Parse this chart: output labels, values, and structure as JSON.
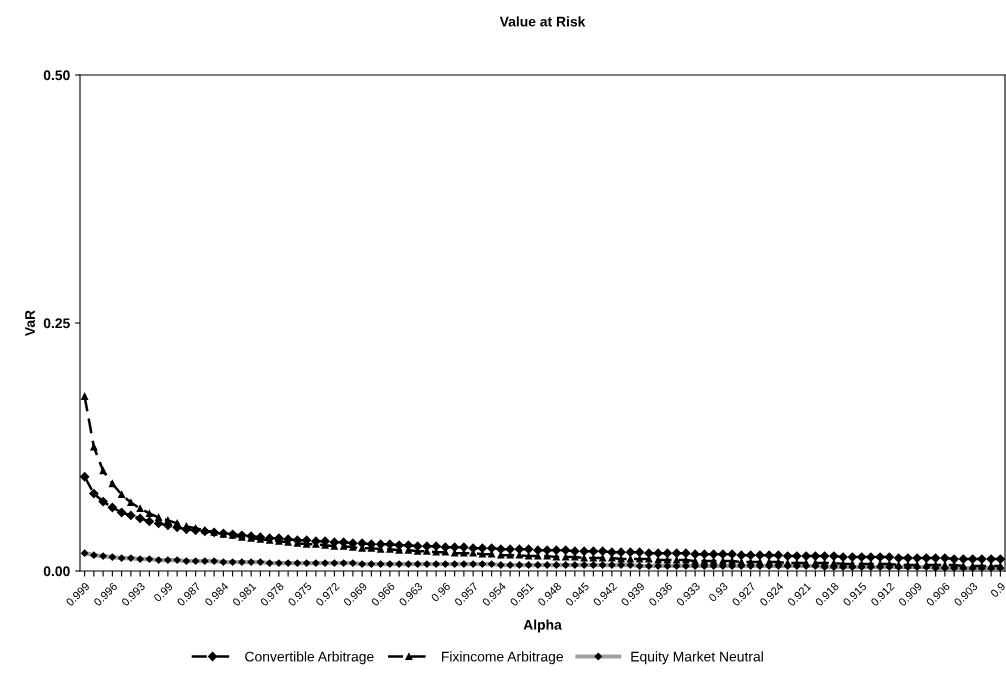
{
  "chart_data": {
    "type": "line",
    "title": "Value at Risk",
    "xlabel": "Alpha",
    "ylabel": "VaR",
    "categories": [
      "0.999",
      null,
      null,
      "0.996",
      null,
      null,
      "0.993",
      null,
      null,
      "0.99",
      null,
      null,
      "0.987",
      null,
      null,
      "0.984",
      null,
      null,
      "0.981",
      null,
      null,
      "0.978",
      null,
      null,
      "0.975",
      null,
      null,
      "0.972",
      null,
      null,
      "0.969",
      null,
      null,
      "0.966",
      null,
      null,
      "0.963",
      null,
      null,
      "0.96",
      null,
      null,
      "0.957",
      null,
      null,
      "0.954",
      null,
      null,
      "0.951",
      null,
      null,
      "0.948",
      null,
      null,
      "0.945",
      null,
      null,
      "0.942",
      null,
      null,
      "0.939",
      null,
      null,
      "0.936",
      null,
      null,
      "0.933",
      null,
      null,
      "0.93",
      null,
      null,
      "0.927",
      null,
      null,
      "0.924",
      null,
      null,
      "0.921",
      null,
      null,
      "0.918",
      null,
      null,
      "0.915",
      null,
      null,
      "0.912",
      null,
      null,
      "0.909",
      null,
      null,
      "0.906",
      null,
      null,
      "0.903",
      null,
      null,
      "0.9"
    ],
    "ylim": [
      0,
      0.5
    ],
    "yticks": [
      {
        "value": 0,
        "label": "0.00"
      },
      {
        "value": 0.25,
        "label": "0.25"
      },
      {
        "value": 0.5,
        "label": "0.50"
      }
    ],
    "grid": false,
    "legend": "bottom",
    "series": [
      {
        "name": "Convertible Arbitrage",
        "color": "#000000",
        "marker": "diamond",
        "line_style": "dashed",
        "values": [
          0.095,
          0.078,
          0.07,
          0.064,
          0.059,
          0.056,
          0.053,
          0.05,
          0.048,
          0.046,
          0.044,
          0.042,
          0.041,
          0.04,
          0.039,
          0.038,
          0.037,
          0.036,
          0.035,
          0.034,
          0.033,
          0.033,
          0.032,
          0.031,
          0.031,
          0.03,
          0.03,
          0.029,
          0.029,
          0.028,
          0.028,
          0.027,
          0.027,
          0.027,
          0.026,
          0.026,
          0.025,
          0.025,
          0.025,
          0.024,
          0.024,
          0.024,
          0.023,
          0.023,
          0.023,
          0.022,
          0.022,
          0.022,
          0.022,
          0.021,
          0.021,
          0.021,
          0.021,
          0.02,
          0.02,
          0.02,
          0.02,
          0.019,
          0.019,
          0.019,
          0.019,
          0.018,
          0.018,
          0.018,
          0.018,
          0.018,
          0.017,
          0.017,
          0.017,
          0.017,
          0.017,
          0.016,
          0.016,
          0.016,
          0.016,
          0.016,
          0.015,
          0.015,
          0.015,
          0.015,
          0.015,
          0.015,
          0.014,
          0.014,
          0.014,
          0.014,
          0.014,
          0.014,
          0.013,
          0.013,
          0.013,
          0.013,
          0.013,
          0.013,
          0.012,
          0.012,
          0.012,
          0.012,
          0.012,
          0.012
        ]
      },
      {
        "name": "Fixincome Arbitrage",
        "color": "#000000",
        "marker": "triangle",
        "line_style": "dashed",
        "values": [
          0.176,
          0.125,
          0.101,
          0.088,
          0.077,
          0.069,
          0.063,
          0.058,
          0.054,
          0.051,
          0.048,
          0.045,
          0.043,
          0.041,
          0.039,
          0.037,
          0.036,
          0.034,
          0.033,
          0.032,
          0.031,
          0.03,
          0.029,
          0.028,
          0.027,
          0.027,
          0.026,
          0.025,
          0.025,
          0.024,
          0.023,
          0.023,
          0.022,
          0.022,
          0.021,
          0.021,
          0.02,
          0.02,
          0.019,
          0.019,
          0.018,
          0.018,
          0.018,
          0.017,
          0.017,
          0.016,
          0.016,
          0.016,
          0.015,
          0.015,
          0.015,
          0.014,
          0.014,
          0.014,
          0.013,
          0.013,
          0.013,
          0.013,
          0.012,
          0.012,
          0.012,
          0.012,
          0.011,
          0.011,
          0.011,
          0.011,
          0.01,
          0.01,
          0.01,
          0.01,
          0.01,
          0.009,
          0.009,
          0.009,
          0.009,
          0.009,
          0.008,
          0.008,
          0.008,
          0.008,
          0.008,
          0.008,
          0.007,
          0.007,
          0.007,
          0.007,
          0.007,
          0.007,
          0.006,
          0.006,
          0.006,
          0.006,
          0.006,
          0.006,
          0.006,
          0.005,
          0.005,
          0.005,
          0.005,
          0.005
        ]
      },
      {
        "name": "Equity Market Neutral",
        "color": "#a0a0a0",
        "marker": "diamond",
        "line_style": "solid",
        "values": [
          0.018,
          0.016,
          0.015,
          0.014,
          0.013,
          0.013,
          0.012,
          0.012,
          0.011,
          0.011,
          0.011,
          0.01,
          0.01,
          0.01,
          0.01,
          0.009,
          0.009,
          0.009,
          0.009,
          0.009,
          0.008,
          0.008,
          0.008,
          0.008,
          0.008,
          0.008,
          0.008,
          0.008,
          0.008,
          0.008,
          0.007,
          0.007,
          0.007,
          0.007,
          0.007,
          0.007,
          0.007,
          0.007,
          0.007,
          0.007,
          0.007,
          0.007,
          0.007,
          0.007,
          0.007,
          0.006,
          0.006,
          0.006,
          0.006,
          0.006,
          0.006,
          0.006,
          0.006,
          0.006,
          0.006,
          0.006,
          0.006,
          0.006,
          0.006,
          0.006,
          0.005,
          0.005,
          0.005,
          0.005,
          0.005,
          0.005,
          0.005,
          0.005,
          0.005,
          0.005,
          0.005,
          0.005,
          0.005,
          0.005,
          0.005,
          0.005,
          0.005,
          0.005,
          0.005,
          0.005,
          0.004,
          0.004,
          0.004,
          0.004,
          0.004,
          0.004,
          0.004,
          0.004,
          0.004,
          0.004,
          0.004,
          0.004,
          0.003,
          0.003,
          0.003,
          0.003,
          0.003,
          0.003,
          0.003,
          0.003
        ]
      }
    ]
  }
}
